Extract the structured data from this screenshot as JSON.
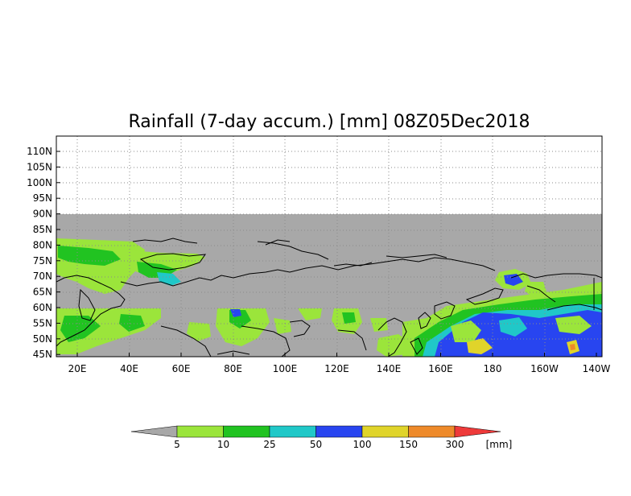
{
  "title": "Rainfall (7-day accum.) [mm] 08Z05Dec2018",
  "map": {
    "lat_labels": [
      "110N",
      "105N",
      "100N",
      "95N",
      "90N",
      "85N",
      "80N",
      "75N",
      "70N",
      "65N",
      "60N",
      "55N",
      "50N",
      "45N"
    ],
    "lon_labels": [
      "20E",
      "40E",
      "60E",
      "80E",
      "100E",
      "120E",
      "140E",
      "160E",
      "180",
      "160W",
      "140W"
    ]
  },
  "legend": {
    "unit": "[mm]",
    "levels": [
      "5",
      "10",
      "25",
      "50",
      "100",
      "150",
      "300"
    ],
    "colors": [
      "#a8a8a8",
      "#9be53b",
      "#21c321",
      "#20c8c8",
      "#2845f0",
      "#e0d42a",
      "#ee8a2a",
      "#ee3a3a"
    ]
  },
  "colors": {
    "missing_data": "#a8a8a8",
    "grid": "#8a8a8a",
    "coastline": "#000000"
  }
}
